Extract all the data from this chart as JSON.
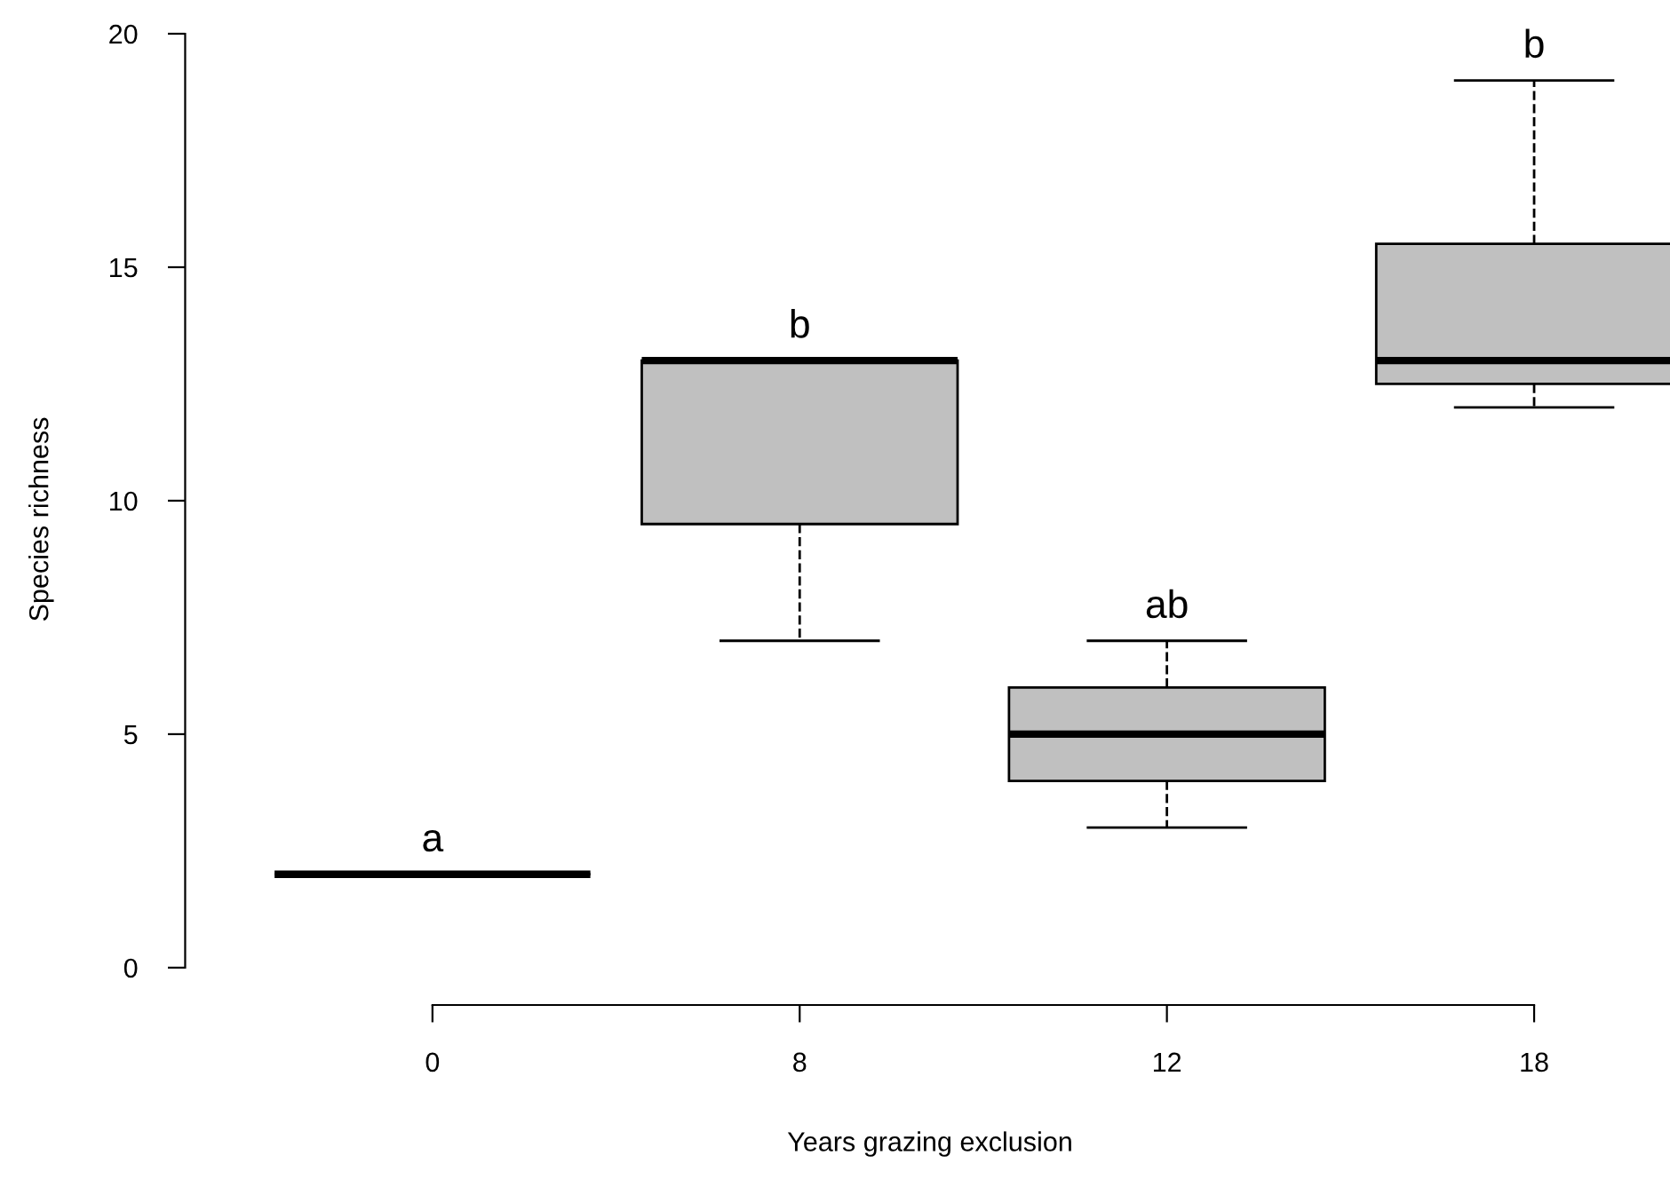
{
  "chart_data": {
    "type": "box",
    "xlabel": "Years grazing exclusion",
    "ylabel": "Species richness",
    "categories": [
      "0",
      "8",
      "12",
      "18"
    ],
    "series": [
      {
        "colors": [
          "#000000",
          "#c0c0c0",
          "#c0c0c0",
          "#c0c0c0"
        ],
        "boxes": [
          {
            "low": 2,
            "q1": 2,
            "median": 2,
            "q3": 2,
            "high": 2
          },
          {
            "low": 7,
            "q1": 9.5,
            "median": 13,
            "q3": 13,
            "high": 13
          },
          {
            "low": 3,
            "q1": 4,
            "median": 5,
            "q3": 6,
            "high": 7
          },
          {
            "low": 12,
            "q1": 12.5,
            "median": 13,
            "q3": 15.5,
            "high": 19
          }
        ]
      }
    ],
    "ylim": [
      -0.8,
      20
    ],
    "yticks": [
      0,
      5,
      10,
      15,
      20
    ],
    "annotations": [
      {
        "text": "a",
        "x": "0",
        "y": 2
      },
      {
        "text": "b",
        "x": "8",
        "y": 13
      },
      {
        "text": "ab",
        "x": "12",
        "y": 7
      },
      {
        "text": "b",
        "x": "18",
        "y": 19
      }
    ]
  }
}
